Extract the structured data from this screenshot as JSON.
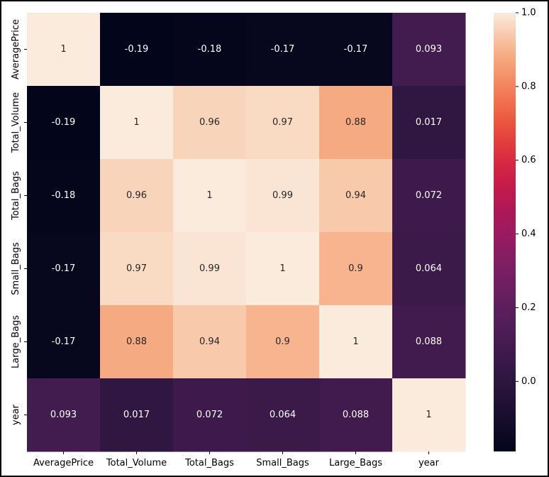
{
  "chart_data": {
    "type": "heatmap",
    "title": "",
    "xlabel": "",
    "ylabel": "",
    "x_labels": [
      "AveragePrice",
      "Total_Volume",
      "Total_Bags",
      "Small_Bags",
      "Large_Bags",
      "year"
    ],
    "y_labels": [
      "AveragePrice",
      "Total_Volume",
      "Total_Bags",
      "Small_Bags",
      "Large_Bags",
      "year"
    ],
    "values": [
      [
        1,
        -0.19,
        -0.18,
        -0.17,
        -0.17,
        0.093
      ],
      [
        -0.19,
        1,
        0.96,
        0.97,
        0.88,
        0.017
      ],
      [
        -0.18,
        0.96,
        1,
        0.99,
        0.94,
        0.072
      ],
      [
        -0.17,
        0.97,
        0.99,
        1,
        0.9,
        0.064
      ],
      [
        -0.17,
        0.88,
        0.94,
        0.9,
        1,
        0.088
      ],
      [
        0.093,
        0.017,
        0.072,
        0.064,
        0.088,
        1
      ]
    ],
    "annotations": [
      [
        "1",
        "-0.19",
        "-0.18",
        "-0.17",
        "-0.17",
        "0.093"
      ],
      [
        "-0.19",
        "1",
        "0.96",
        "0.97",
        "0.88",
        "0.017"
      ],
      [
        "-0.18",
        "0.96",
        "1",
        "0.99",
        "0.94",
        "0.072"
      ],
      [
        "-0.17",
        "0.97",
        "0.99",
        "1",
        "0.9",
        "0.064"
      ],
      [
        "-0.17",
        "0.88",
        "0.94",
        "0.9",
        "1",
        "0.088"
      ],
      [
        "0.093",
        "0.017",
        "0.072",
        "0.064",
        "0.088",
        "1"
      ]
    ],
    "colormap": "rocket",
    "color_range": [
      -0.19,
      1.0
    ],
    "colorbar_ticks": [
      0.0,
      0.2,
      0.4,
      0.6,
      0.8,
      1.0
    ],
    "colorbar_tick_labels": [
      "0.0",
      "0.2",
      "0.4",
      "0.6",
      "0.8",
      "1.0"
    ],
    "legend": "colorbar-right",
    "grid": false
  }
}
